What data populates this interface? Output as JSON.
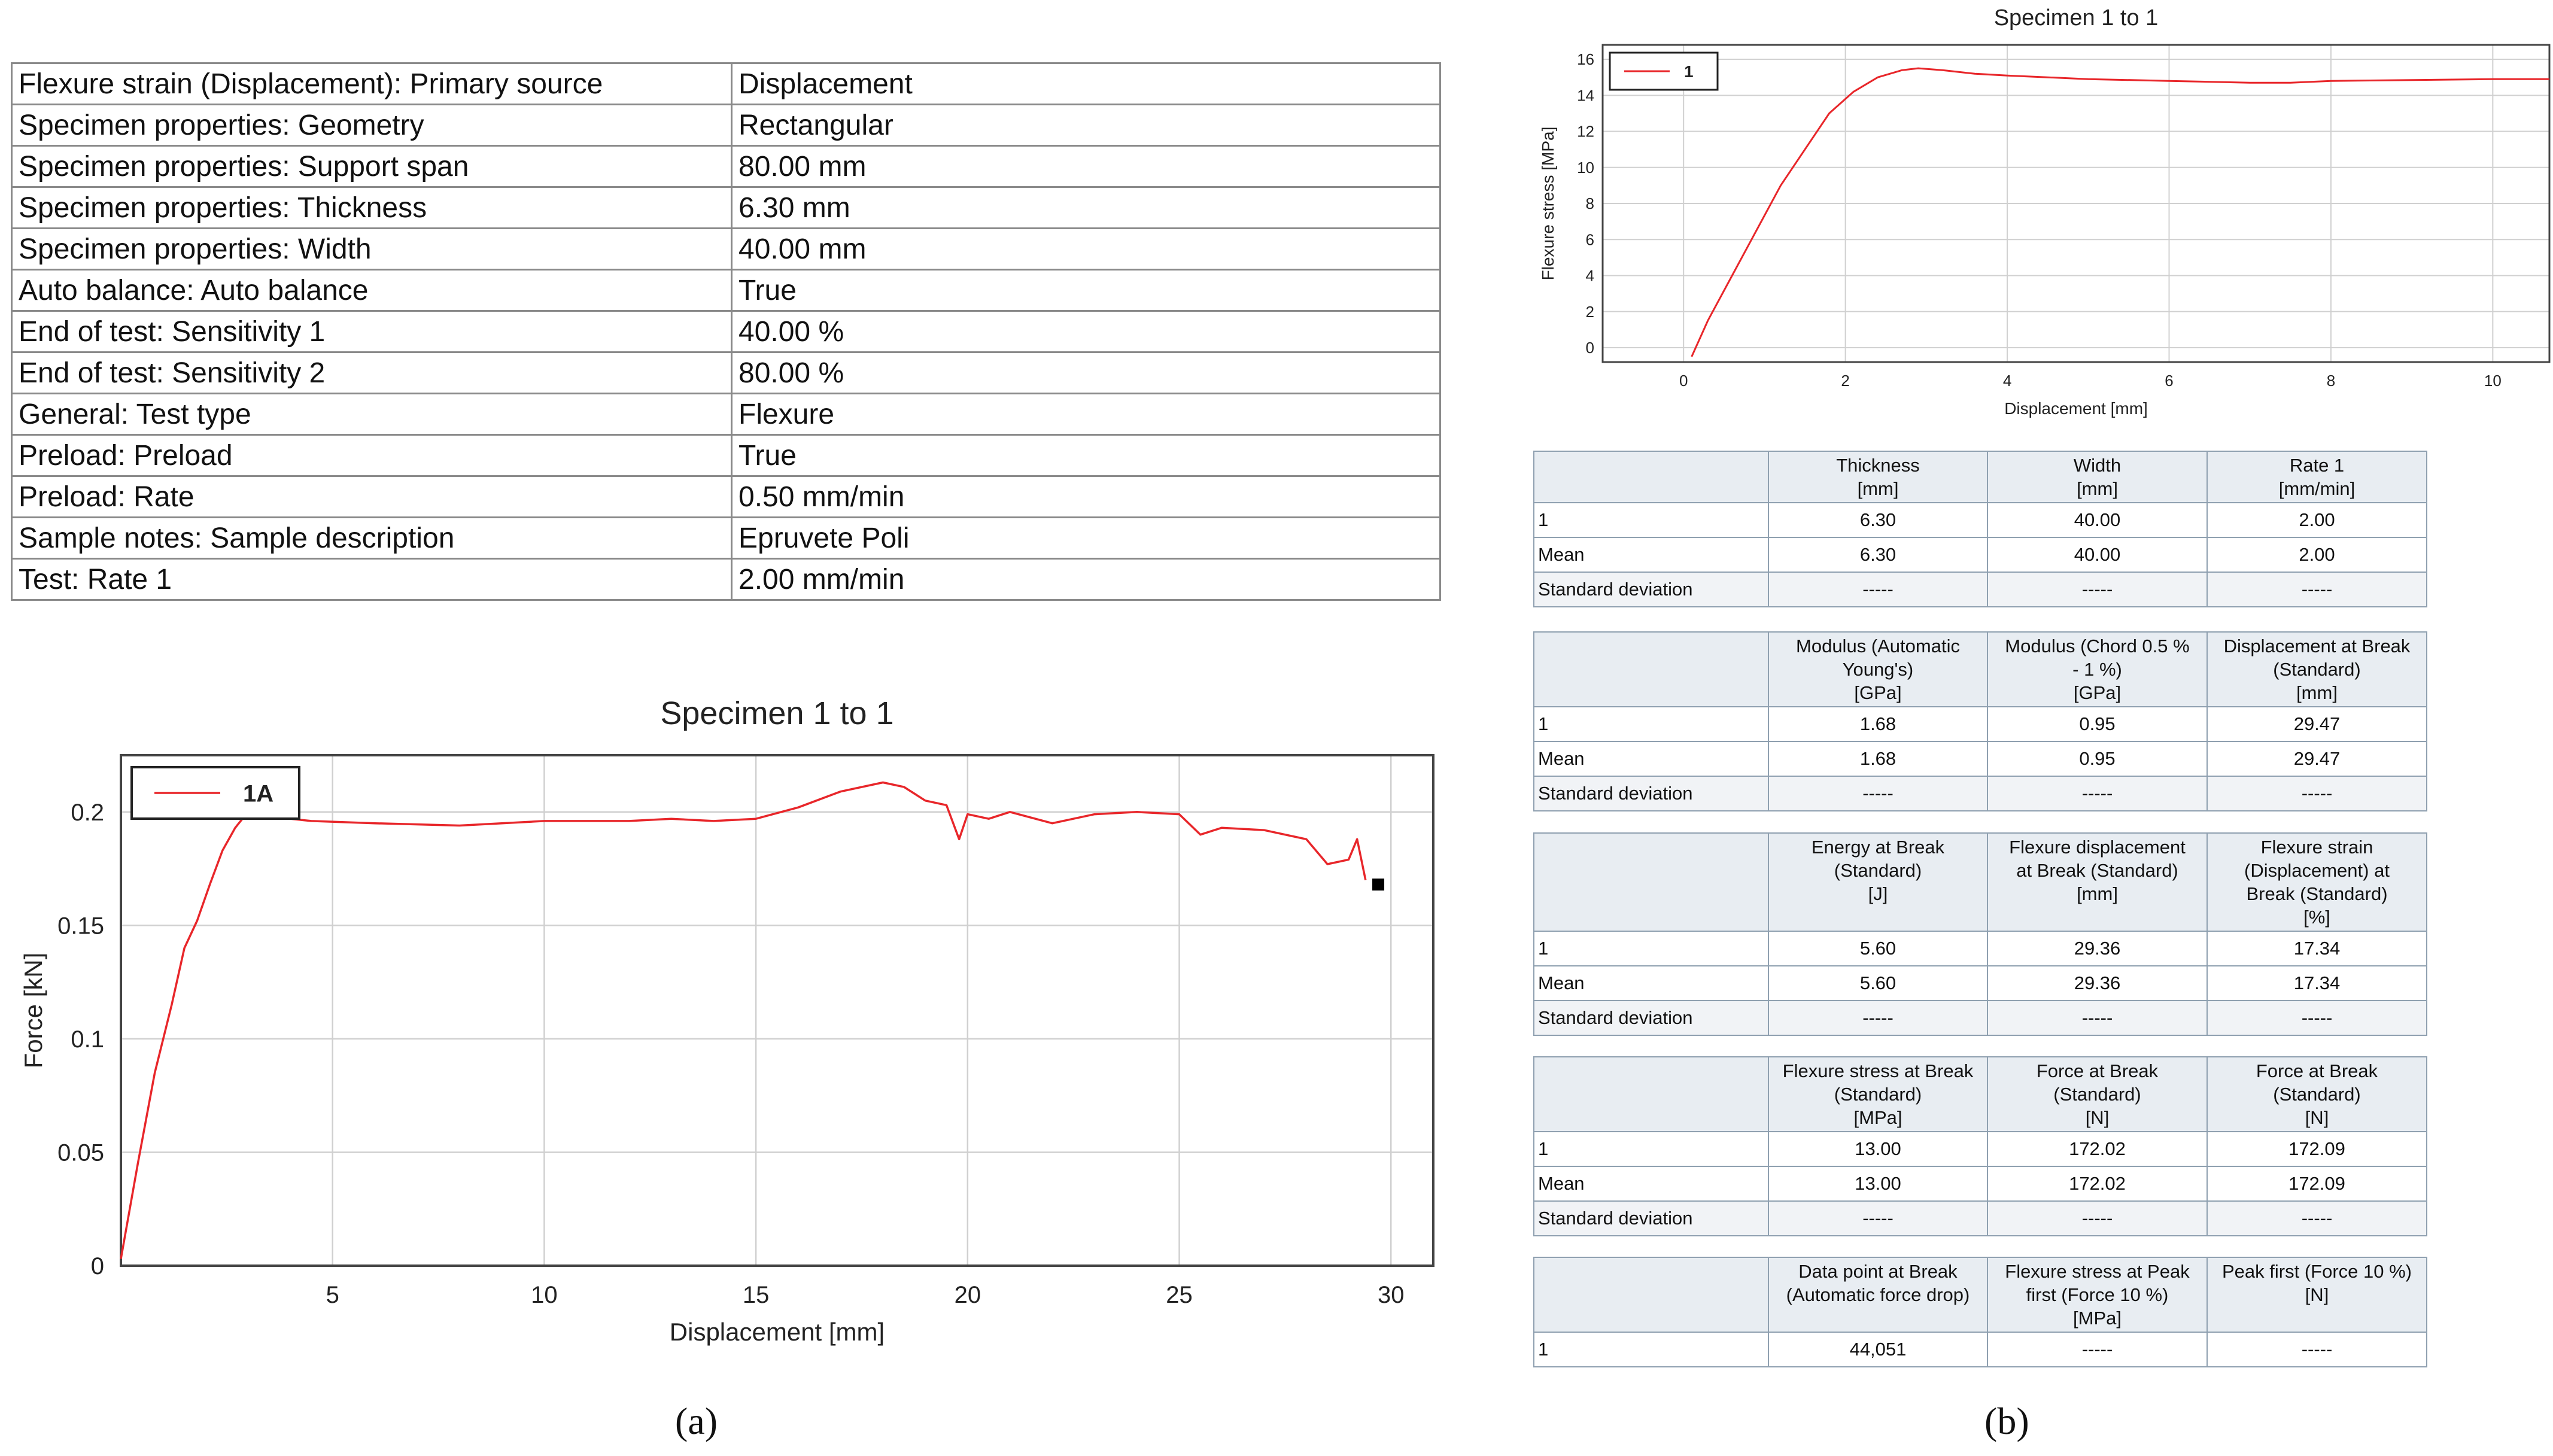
{
  "parameters": {
    "rows": [
      {
        "key": "Flexure strain (Displacement): Primary source",
        "value": "Displacement"
      },
      {
        "key": "Specimen properties: Geometry",
        "value": "Rectangular"
      },
      {
        "key": "Specimen properties: Support span",
        "value": "80.00 mm"
      },
      {
        "key": "Specimen properties: Thickness",
        "value": "6.30 mm"
      },
      {
        "key": "Specimen properties: Width",
        "value": "40.00 mm"
      },
      {
        "key": "Auto balance: Auto balance",
        "value": "True"
      },
      {
        "key": "End of test: Sensitivity 1",
        "value": "40.00 %"
      },
      {
        "key": "End of test: Sensitivity 2",
        "value": "80.00 %"
      },
      {
        "key": "General: Test type",
        "value": "Flexure"
      },
      {
        "key": "Preload: Preload",
        "value": "True"
      },
      {
        "key": "Preload: Rate",
        "value": "0.50 mm/min"
      },
      {
        "key": "Sample notes: Sample description",
        "value": "Epruvete Poli"
      },
      {
        "key": "Test: Rate 1",
        "value": "2.00 mm/min"
      }
    ]
  },
  "chart_data": [
    {
      "type": "line",
      "title": "Specimen 1 to 1",
      "xlabel": "Displacement [mm]",
      "ylabel": "Force [kN]",
      "xlim": [
        0,
        31
      ],
      "ylim": [
        0,
        0.225
      ],
      "xticks": [
        "5",
        "10",
        "15",
        "20",
        "25",
        "30"
      ],
      "xtick_values": [
        5,
        10,
        15,
        20,
        25,
        30
      ],
      "yticks": [
        "0",
        "0.05",
        "0.1",
        "0.15",
        "0.2"
      ],
      "ytick_values": [
        0,
        0.05,
        0.1,
        0.15,
        0.2
      ],
      "grid": true,
      "legend_position": "top-left",
      "series": [
        {
          "name": "1A",
          "color": "#e8262a",
          "x": [
            0,
            0.4,
            0.8,
            1.2,
            1.5,
            1.8,
            2.1,
            2.4,
            2.7,
            3.0,
            3.5,
            4.5,
            6,
            8,
            10,
            12,
            13,
            14,
            15,
            16,
            17,
            18,
            18.5,
            19,
            19.5,
            19.8,
            20,
            20.5,
            21,
            22,
            23,
            24,
            25,
            25.5,
            26,
            27,
            28,
            28.5,
            29,
            29.2,
            29.4
          ],
          "y": [
            0.003,
            0.045,
            0.085,
            0.115,
            0.14,
            0.152,
            0.168,
            0.183,
            0.193,
            0.2,
            0.198,
            0.196,
            0.195,
            0.194,
            0.196,
            0.196,
            0.197,
            0.196,
            0.197,
            0.202,
            0.209,
            0.213,
            0.211,
            0.205,
            0.203,
            0.188,
            0.199,
            0.197,
            0.2,
            0.195,
            0.199,
            0.2,
            0.199,
            0.19,
            0.193,
            0.192,
            0.188,
            0.177,
            0.179,
            0.188,
            0.17
          ]
        }
      ],
      "end_marker": {
        "x": 29.7,
        "y": 0.168
      }
    },
    {
      "type": "line",
      "title": "Specimen 1 to 1",
      "xlabel": "Displacement [mm]",
      "ylabel": "Flexure stress [MPa]",
      "xlim": [
        -1,
        10.7
      ],
      "ylim": [
        -0.8,
        16.8
      ],
      "xticks": [
        "0",
        "2",
        "4",
        "6",
        "8",
        "10"
      ],
      "xtick_values": [
        0,
        2,
        4,
        6,
        8,
        10
      ],
      "yticks": [
        "0",
        "2",
        "4",
        "6",
        "8",
        "10",
        "12",
        "14",
        "16"
      ],
      "ytick_values": [
        0,
        2,
        4,
        6,
        8,
        10,
        12,
        14,
        16
      ],
      "grid": true,
      "legend_position": "top-left",
      "series": [
        {
          "name": "1",
          "color": "#e8262a",
          "x": [
            0.1,
            0.3,
            0.6,
            0.9,
            1.2,
            1.5,
            1.8,
            2.1,
            2.4,
            2.7,
            2.9,
            3.2,
            3.6,
            4,
            4.5,
            5,
            6,
            7,
            7.5,
            8,
            9,
            10,
            10.7
          ],
          "y": [
            -0.5,
            1.5,
            4,
            6.5,
            9,
            11,
            13,
            14.2,
            15,
            15.4,
            15.5,
            15.4,
            15.2,
            15.1,
            15.0,
            14.9,
            14.8,
            14.7,
            14.7,
            14.8,
            14.85,
            14.9,
            14.9
          ]
        }
      ]
    }
  ],
  "result_tables": [
    {
      "headers": [
        "",
        "Thickness\n[mm]",
        "Width\n[mm]",
        "Rate 1\n[mm/min]"
      ],
      "rows": [
        [
          "1",
          "6.30",
          "40.00",
          "2.00"
        ],
        [
          "Mean",
          "6.30",
          "40.00",
          "2.00"
        ],
        [
          "Standard deviation",
          "-----",
          "-----",
          "-----"
        ]
      ]
    },
    {
      "headers": [
        "",
        "Modulus (Automatic\nYoung's)\n[GPa]",
        "Modulus (Chord 0.5 %\n- 1 %)\n[GPa]",
        "Displacement at Break\n(Standard)\n[mm]"
      ],
      "rows": [
        [
          "1",
          "1.68",
          "0.95",
          "29.47"
        ],
        [
          "Mean",
          "1.68",
          "0.95",
          "29.47"
        ],
        [
          "Standard deviation",
          "-----",
          "-----",
          "-----"
        ]
      ]
    },
    {
      "headers": [
        "",
        "Energy at Break\n(Standard)\n[J]",
        "Flexure displacement\nat Break (Standard)\n[mm]",
        "Flexure strain\n(Displacement) at\nBreak (Standard)\n[%]"
      ],
      "rows": [
        [
          "1",
          "5.60",
          "29.36",
          "17.34"
        ],
        [
          "Mean",
          "5.60",
          "29.36",
          "17.34"
        ],
        [
          "Standard deviation",
          "-----",
          "-----",
          "-----"
        ]
      ]
    },
    {
      "headers": [
        "",
        "Flexure stress at Break\n(Standard)\n[MPa]",
        "Force at Break\n(Standard)\n[N]",
        "Force at Break\n(Standard)\n[N]"
      ],
      "rows": [
        [
          "1",
          "13.00",
          "172.02",
          "172.09"
        ],
        [
          "Mean",
          "13.00",
          "172.02",
          "172.09"
        ],
        [
          "Standard deviation",
          "-----",
          "-----",
          "-----"
        ]
      ]
    },
    {
      "headers": [
        "",
        "Data point at Break\n(Automatic force drop)",
        "Flexure stress at Peak\nfirst (Force 10 %)\n[MPa]",
        "Peak first (Force 10 %)\n[N]"
      ],
      "rows": [
        [
          "1",
          "44,051",
          "-----",
          "-----"
        ]
      ]
    }
  ],
  "captions": {
    "a": "(a)",
    "b": "(b)"
  },
  "colors": {
    "series": "#e8262a",
    "grid": "#d0d0d0",
    "header_bg": "#e8edf2",
    "table_border": "#8fa0b0"
  }
}
